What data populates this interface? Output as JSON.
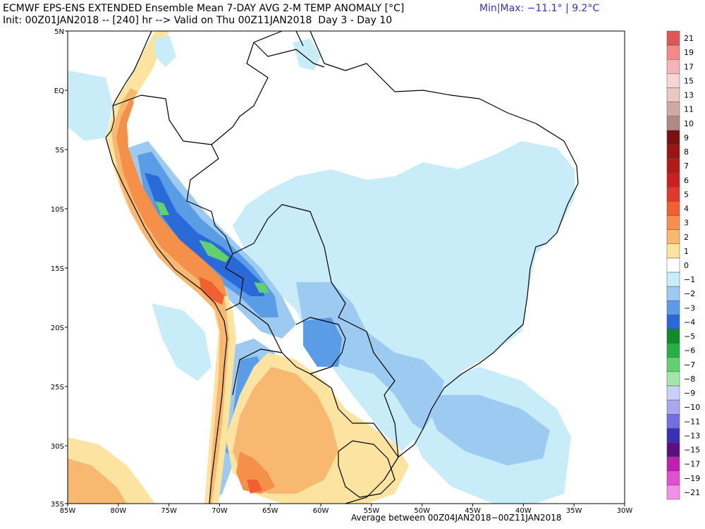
{
  "header": {
    "title_line1": "ECMWF EPS-ENS EXTENDED Ensemble Mean 7-DAY AVG 2-M TEMP ANOMALY [°C]",
    "title_line2": "Init: 00Z01JAN2018 -- [240] hr --> Valid on Thu 00Z11JAN2018  Day 3 - Day 10",
    "minmax": "Min|Max: −11.1° | 9.2°C"
  },
  "footer": "Average between 00Z04JAN2018−00Z11JAN2018",
  "map": {
    "lat_labels": [
      "5N",
      "EQ",
      "5S",
      "10S",
      "15S",
      "20S",
      "25S",
      "30S",
      "35S"
    ],
    "lon_labels": [
      "85W",
      "80W",
      "75W",
      "70W",
      "65W",
      "60W",
      "55W",
      "50W",
      "45W",
      "40W",
      "35W",
      "30W"
    ]
  },
  "colorbar": {
    "entries": [
      {
        "label": "21",
        "color": "#e05555"
      },
      {
        "label": "19",
        "color": "#f28a8a"
      },
      {
        "label": "17",
        "color": "#f5b5b5"
      },
      {
        "label": "15",
        "color": "#f7d5d5"
      },
      {
        "label": "13",
        "color": "#e8c8c0"
      },
      {
        "label": "11",
        "color": "#cfaaa0"
      },
      {
        "label": "10",
        "color": "#b08a80"
      },
      {
        "label": "9",
        "color": "#7a1010"
      },
      {
        "label": "8",
        "color": "#9a1515"
      },
      {
        "label": "7",
        "color": "#b51a1a"
      },
      {
        "label": "6",
        "color": "#cc2020"
      },
      {
        "label": "5",
        "color": "#e03a2a"
      },
      {
        "label": "4",
        "color": "#f06030"
      },
      {
        "label": "3",
        "color": "#f5904a"
      },
      {
        "label": "2",
        "color": "#f8b870"
      },
      {
        "label": "1",
        "color": "#fce4a0"
      },
      {
        "label": "0",
        "color": "#ffffff"
      },
      {
        "label": "−1",
        "color": "#c8ecf8"
      },
      {
        "label": "−2",
        "color": "#9ccaf0"
      },
      {
        "label": "−3",
        "color": "#5a9de6"
      },
      {
        "label": "−4",
        "color": "#2a6ad8"
      },
      {
        "label": "−5",
        "color": "#118a2a"
      },
      {
        "label": "−6",
        "color": "#28b040"
      },
      {
        "label": "−7",
        "color": "#60d070"
      },
      {
        "label": "−8",
        "color": "#a0e8a8"
      },
      {
        "label": "−9",
        "color": "#c8d0f8"
      },
      {
        "label": "−10",
        "color": "#a8a8f0"
      },
      {
        "label": "−11",
        "color": "#7070e0"
      },
      {
        "label": "−13",
        "color": "#3a30b8"
      },
      {
        "label": "−15",
        "color": "#5a1080"
      },
      {
        "label": "−17",
        "color": "#c020b0"
      },
      {
        "label": "−19",
        "color": "#e050d0"
      },
      {
        "label": "−21",
        "color": "#f590e8"
      }
    ]
  },
  "palette": {
    "light_blue": "#c8ecf8",
    "mid_blue": "#9ccaf0",
    "blue": "#5a9de6",
    "dark_blue": "#2a6ad8",
    "green": "#28b040",
    "light_green": "#60d070",
    "cream": "#fce4a0",
    "light_orange": "#f8b870",
    "orange": "#f5904a",
    "dark_orange": "#f06030",
    "red": "#e03a2a"
  }
}
